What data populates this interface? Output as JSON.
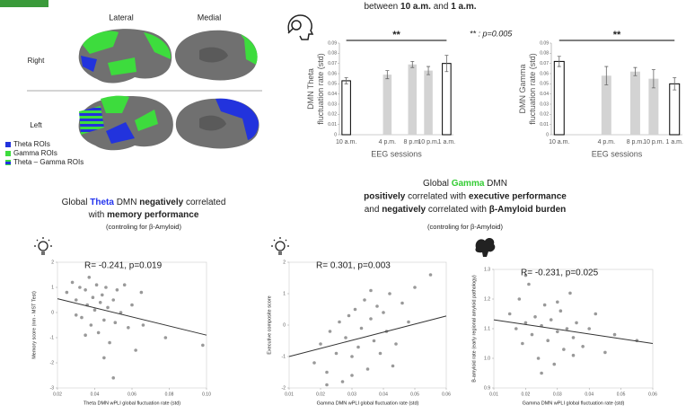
{
  "brain_panel": {
    "columns": [
      "Lateral",
      "Medial"
    ],
    "rows": [
      "Right",
      "Left"
    ],
    "legend": [
      {
        "label": "Theta ROIs",
        "color": "#2233dd"
      },
      {
        "label": "Gamma ROIs",
        "color": "#3ddc3d"
      },
      {
        "label": "Theta – Gamma ROIs"
      }
    ]
  },
  "session_heading": [
    [
      {
        "text": "between "
      },
      {
        "text": "10 a.m.",
        "bold": true
      },
      {
        "text": " and "
      },
      {
        "text": "1 a.m.",
        "bold": true
      }
    ]
  ],
  "theta_heading": {
    "lines": [
      [
        {
          "text": "Global "
        },
        {
          "text": "Theta",
          "bold": true,
          "color": "#2233ee"
        },
        {
          "text": " DMN "
        },
        {
          "text": "negatively",
          "bold": true
        },
        {
          "text": " correlated"
        }
      ],
      [
        {
          "text": "with "
        },
        {
          "text": "memory performance",
          "bold": true
        }
      ]
    ],
    "note": "(controling for β-Amyloid)"
  },
  "gamma_heading": {
    "lines": [
      [
        {
          "text": "Global "
        },
        {
          "text": "Gamma",
          "bold": true,
          "color": "#33cc33"
        },
        {
          "text": " DMN"
        }
      ],
      [
        {
          "text": "positively",
          "bold": true
        },
        {
          "text": " correlated with "
        },
        {
          "text": "executive performance",
          "bold": true
        }
      ],
      [
        {
          "text": "and "
        },
        {
          "text": "negatively",
          "bold": true
        },
        {
          "text": " correlated with "
        },
        {
          "text": "β-Amyloid burden",
          "bold": true
        }
      ]
    ],
    "note": "(controling for β-Amyloid)"
  },
  "chart_data": [
    {
      "type": "bar",
      "ylabel": [
        "DMN Theta",
        "fluctuation rate (std)"
      ],
      "xlabel": "EEG sessions",
      "categories": [
        "10 a.m.",
        "4 p.m.",
        "8 p.m.",
        "10 p.m.",
        "1 a.m."
      ],
      "values": [
        0.053,
        0.059,
        0.069,
        0.063,
        0.07
      ],
      "errors": [
        0.003,
        0.004,
        0.003,
        0.004,
        0.008
      ],
      "colors": [
        "#ffffff",
        "#d3d3d3",
        "#d3d3d3",
        "#d3d3d3",
        "#ffffff"
      ],
      "ylim": [
        0,
        0.09
      ],
      "yticks": [
        0,
        0.01,
        0.02,
        0.03,
        0.04,
        0.05,
        0.06,
        0.07,
        0.08,
        0.09
      ],
      "significance": "**",
      "annotation": "** : p=0.005"
    },
    {
      "type": "bar",
      "ylabel": [
        "DMN Gamma",
        "fluctuation rate (std)"
      ],
      "xlabel": "EEG sessions",
      "categories": [
        "10 a.m.",
        "4 p.m.",
        "8 p.m.",
        "10 p.m.",
        "1 a.m."
      ],
      "values": [
        0.072,
        0.058,
        0.062,
        0.055,
        0.05
      ],
      "errors": [
        0.005,
        0.009,
        0.004,
        0.009,
        0.006
      ],
      "colors": [
        "#ffffff",
        "#d3d3d3",
        "#d3d3d3",
        "#d3d3d3",
        "#ffffff"
      ],
      "ylim": [
        0,
        0.09
      ],
      "yticks": [
        0,
        0.01,
        0.02,
        0.03,
        0.04,
        0.05,
        0.06,
        0.07,
        0.08,
        0.09
      ],
      "significance": "**"
    },
    {
      "type": "scatter",
      "annotation": "R= -0.241, p=0.019",
      "xlabel": "Theta DMN wPLI global fluctuation rate (std)",
      "ylabel": "Memory score (nm - MST Test)",
      "color": "#999999",
      "x": [
        0.025,
        0.028,
        0.03,
        0.032,
        0.033,
        0.035,
        0.036,
        0.037,
        0.038,
        0.039,
        0.04,
        0.041,
        0.042,
        0.043,
        0.044,
        0.045,
        0.046,
        0.047,
        0.048,
        0.05,
        0.051,
        0.052,
        0.054,
        0.056,
        0.058,
        0.06,
        0.062,
        0.065,
        0.03,
        0.035,
        0.045,
        0.05,
        0.066,
        0.078,
        0.098
      ],
      "values": [
        0.8,
        1.2,
        0.5,
        1.0,
        -0.2,
        0.9,
        0.3,
        1.4,
        -0.5,
        0.6,
        0.1,
        1.1,
        -0.8,
        0.4,
        0.7,
        -0.3,
        1.0,
        0.2,
        -1.2,
        0.5,
        -0.4,
        0.9,
        0.0,
        1.1,
        -0.6,
        0.3,
        -1.5,
        0.8,
        -0.1,
        -0.9,
        -1.8,
        -2.6,
        -0.5,
        -1.0,
        -1.3
      ],
      "fit": {
        "x": [
          0.02,
          0.1
        ],
        "values": [
          0.55,
          -0.9
        ]
      },
      "xlim": [
        0.02,
        0.1
      ],
      "xticks": [
        0.02,
        0.04,
        0.06,
        0.08,
        {
          "value": 0.1,
          "label": "0.10"
        }
      ],
      "ylim": [
        -3,
        2
      ],
      "yticks": [
        -3,
        -2,
        -1,
        0,
        1,
        2
      ]
    },
    {
      "type": "scatter",
      "annotation": "R= 0.301, p=0.003",
      "xlabel": "Gamma DMN wPLI global fluctuation rate (std)",
      "ylabel": "Executive composite score",
      "color": "#999999",
      "x": [
        0.018,
        0.02,
        0.022,
        0.023,
        0.025,
        0.026,
        0.027,
        0.028,
        0.029,
        0.03,
        0.031,
        0.032,
        0.033,
        0.034,
        0.035,
        0.036,
        0.037,
        0.038,
        0.039,
        0.04,
        0.041,
        0.042,
        0.044,
        0.046,
        0.048,
        0.05,
        0.022,
        0.03,
        0.036,
        0.043,
        0.055
      ],
      "values": [
        -1.2,
        -0.6,
        -1.5,
        -0.2,
        -0.9,
        0.1,
        -1.8,
        -0.4,
        0.3,
        -1.0,
        0.5,
        -0.7,
        -0.1,
        0.8,
        -1.4,
        0.2,
        -0.5,
        0.6,
        -0.9,
        0.4,
        -0.2,
        1.0,
        -0.6,
        0.7,
        0.1,
        1.2,
        -1.9,
        -1.6,
        1.1,
        -1.3,
        1.6
      ],
      "fit": {
        "x": [
          0.01,
          0.06
        ],
        "values": [
          -1.0,
          0.29
        ]
      },
      "xlim": [
        0.01,
        0.06
      ],
      "xticks": [
        0.01,
        0.02,
        0.03,
        0.04,
        0.05,
        0.06
      ],
      "ylim": [
        -2,
        2
      ],
      "yticks": [
        -2,
        -1,
        0,
        1,
        2
      ]
    },
    {
      "type": "scatter",
      "annotation": "R= -0.231, p=0.025",
      "xlabel": "Gamma DMN wPLI global fluctuation rate (std)",
      "ylabel": "B-amyloid rate (early regional amyloid pathology)",
      "color": "#999999",
      "x": [
        0.015,
        0.017,
        0.018,
        0.019,
        0.02,
        0.021,
        0.022,
        0.023,
        0.024,
        0.025,
        0.026,
        0.027,
        0.028,
        0.029,
        0.03,
        0.031,
        0.032,
        0.033,
        0.034,
        0.035,
        0.036,
        0.038,
        0.04,
        0.042,
        0.045,
        0.048,
        0.02,
        0.025,
        0.03,
        0.035,
        0.055
      ],
      "values": [
        1.15,
        1.1,
        1.2,
        1.05,
        1.12,
        1.25,
        1.08,
        1.14,
        1.0,
        1.11,
        1.18,
        1.06,
        1.13,
        0.98,
        1.09,
        1.16,
        1.03,
        1.1,
        1.22,
        1.07,
        1.12,
        1.04,
        1.1,
        1.15,
        1.02,
        1.08,
        1.28,
        0.95,
        1.19,
        1.01,
        1.06
      ],
      "fit": {
        "x": [
          0.01,
          0.06
        ],
        "values": [
          1.13,
          1.05
        ]
      },
      "xlim": [
        0.01,
        0.06
      ],
      "xticks": [
        0.01,
        0.02,
        0.03,
        0.04,
        0.05,
        0.06
      ],
      "ylim": [
        0.9,
        1.3
      ],
      "yticks": [
        0.9,
        {
          "value": 1,
          "label": "1.0"
        },
        1.1,
        1.2,
        1.3
      ]
    }
  ]
}
